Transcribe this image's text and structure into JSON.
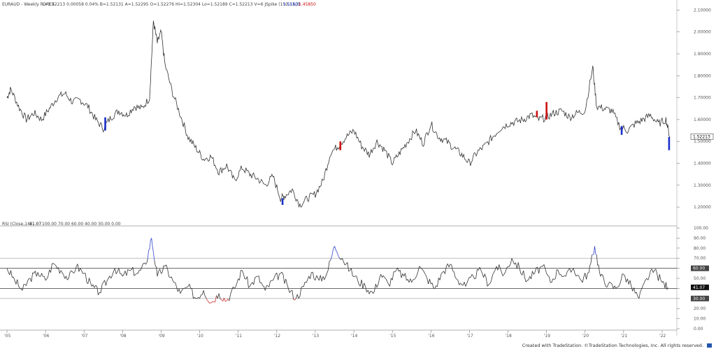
{
  "header": {
    "symbol": "EURAUD - Weekly  FOREX",
    "quote": "L=1.52213  0.00058  0.04%  B=1.52131  A=1.52295  O=1.52276  Hi=1.52304  Lo=1.52189  C=1.52213  V=6  JSpike (150,13,2)",
    "spike_values": [
      "1.51601",
      "1.45850"
    ]
  },
  "rsi_header": {
    "label": "RSI (Close,14)",
    "value": "41.07",
    "levels": "100.00  70.00  60.00  40.00  30.00  0.00"
  },
  "footer": {
    "text": "Created with TradeStation. ©TradeStation Technologies, Inc. All rights reserved."
  },
  "colors": {
    "price_line": "#333333",
    "bull_spike": "#1a2fc9",
    "bear_spike": "#cc1111",
    "rsi_overbought": "#3344cc",
    "rsi_oversold": "#cc3333",
    "last_price_tag": "#1a2fc9"
  },
  "chart_data": [
    {
      "type": "line",
      "title": "EURAUD - Weekly",
      "x_ticks": [
        "'05",
        "'06",
        "'07",
        "'08",
        "'09",
        "'10",
        "'11",
        "'12",
        "'13",
        "'14",
        "'15",
        "'16",
        "'17",
        "'18",
        "'19",
        "'20",
        "'21",
        "'22"
      ],
      "y_ticks": [
        "2.10000",
        "2.00000",
        "1.90000",
        "1.80000",
        "1.70000",
        "1.60000",
        "1.50000",
        "1.40000",
        "1.30000",
        "1.20000"
      ],
      "ylim": [
        1.13,
        2.13
      ],
      "last_value": "1.52213",
      "series": [
        {
          "name": "EURAUD",
          "x": [
            2005.0,
            2005.1,
            2005.3,
            2005.5,
            2005.7,
            2005.9,
            2006.1,
            2006.3,
            2006.5,
            2006.7,
            2006.9,
            2007.1,
            2007.3,
            2007.5,
            2007.7,
            2007.9,
            2008.1,
            2008.3,
            2008.5,
            2008.7,
            2008.8,
            2008.9,
            2009.0,
            2009.1,
            2009.3,
            2009.5,
            2009.7,
            2009.9,
            2010.1,
            2010.3,
            2010.5,
            2010.7,
            2010.9,
            2011.1,
            2011.3,
            2011.5,
            2011.7,
            2011.9,
            2012.1,
            2012.2,
            2012.4,
            2012.6,
            2012.8,
            2013.0,
            2013.2,
            2013.4,
            2013.6,
            2013.8,
            2014.0,
            2014.2,
            2014.4,
            2014.6,
            2014.8,
            2015.0,
            2015.2,
            2015.4,
            2015.6,
            2015.8,
            2016.0,
            2016.2,
            2016.4,
            2016.6,
            2016.8,
            2017.0,
            2017.2,
            2017.4,
            2017.6,
            2017.8,
            2018.0,
            2018.2,
            2018.4,
            2018.6,
            2018.8,
            2019.0,
            2019.2,
            2019.4,
            2019.6,
            2019.8,
            2020.0,
            2020.2,
            2020.3,
            2020.5,
            2020.7,
            2020.9,
            2021.1,
            2021.3,
            2021.5,
            2021.7,
            2021.9,
            2022.1,
            2022.2
          ],
          "y": [
            1.7,
            1.74,
            1.66,
            1.6,
            1.63,
            1.6,
            1.65,
            1.7,
            1.72,
            1.68,
            1.69,
            1.66,
            1.6,
            1.56,
            1.61,
            1.64,
            1.62,
            1.66,
            1.65,
            1.7,
            2.05,
            1.95,
            2.0,
            1.85,
            1.72,
            1.62,
            1.52,
            1.47,
            1.42,
            1.43,
            1.36,
            1.39,
            1.32,
            1.38,
            1.35,
            1.33,
            1.3,
            1.34,
            1.24,
            1.25,
            1.28,
            1.21,
            1.24,
            1.26,
            1.32,
            1.45,
            1.48,
            1.52,
            1.55,
            1.48,
            1.44,
            1.5,
            1.46,
            1.4,
            1.45,
            1.5,
            1.55,
            1.49,
            1.58,
            1.52,
            1.5,
            1.47,
            1.44,
            1.4,
            1.45,
            1.48,
            1.52,
            1.56,
            1.58,
            1.59,
            1.6,
            1.62,
            1.6,
            1.61,
            1.63,
            1.64,
            1.61,
            1.63,
            1.64,
            1.84,
            1.66,
            1.65,
            1.64,
            1.57,
            1.55,
            1.58,
            1.6,
            1.62,
            1.58,
            1.6,
            1.52
          ]
        }
      ]
    },
    {
      "type": "line",
      "title": "RSI (Close,14)",
      "y_ticks": [
        "100.00",
        "90.00",
        "80.00",
        "70.00",
        "60.00",
        "50.00",
        "40.00",
        "30.00",
        "20.00",
        "10.00",
        "0.00"
      ],
      "ylim": [
        0,
        100
      ],
      "levels": [
        70,
        60,
        40,
        30
      ],
      "last_value": "41.07",
      "level_labels": [
        "60.00",
        "30.00"
      ],
      "series": [
        {
          "name": "RSI",
          "x": [
            2005.0,
            2005.2,
            2005.4,
            2005.6,
            2005.8,
            2006.0,
            2006.2,
            2006.4,
            2006.6,
            2006.8,
            2007.0,
            2007.2,
            2007.4,
            2007.6,
            2007.8,
            2008.0,
            2008.2,
            2008.4,
            2008.6,
            2008.75,
            2008.9,
            2009.1,
            2009.3,
            2009.5,
            2009.7,
            2009.9,
            2010.1,
            2010.3,
            2010.5,
            2010.7,
            2010.9,
            2011.1,
            2011.3,
            2011.5,
            2011.7,
            2011.9,
            2012.1,
            2012.3,
            2012.5,
            2012.7,
            2012.9,
            2013.1,
            2013.3,
            2013.5,
            2013.7,
            2013.9,
            2014.1,
            2014.3,
            2014.5,
            2014.7,
            2014.9,
            2015.1,
            2015.3,
            2015.5,
            2015.7,
            2015.9,
            2016.1,
            2016.3,
            2016.5,
            2016.7,
            2016.9,
            2017.1,
            2017.3,
            2017.5,
            2017.7,
            2017.9,
            2018.1,
            2018.3,
            2018.5,
            2018.7,
            2018.9,
            2019.1,
            2019.3,
            2019.5,
            2019.7,
            2019.9,
            2020.1,
            2020.25,
            2020.4,
            2020.6,
            2020.8,
            2021.0,
            2021.2,
            2021.4,
            2021.6,
            2021.8,
            2022.0,
            2022.15
          ],
          "y": [
            60,
            48,
            38,
            50,
            56,
            48,
            65,
            58,
            50,
            62,
            55,
            42,
            36,
            48,
            60,
            52,
            58,
            55,
            64,
            90,
            52,
            62,
            48,
            35,
            42,
            30,
            38,
            26,
            35,
            28,
            40,
            58,
            42,
            52,
            38,
            48,
            55,
            40,
            30,
            42,
            56,
            48,
            55,
            82,
            70,
            58,
            48,
            42,
            35,
            54,
            44,
            58,
            52,
            46,
            62,
            50,
            40,
            56,
            64,
            48,
            42,
            52,
            58,
            44,
            62,
            54,
            70,
            60,
            48,
            56,
            62,
            46,
            58,
            52,
            60,
            48,
            56,
            82,
            52,
            44,
            40,
            54,
            42,
            30,
            50,
            58,
            46,
            41
          ]
        }
      ]
    }
  ]
}
